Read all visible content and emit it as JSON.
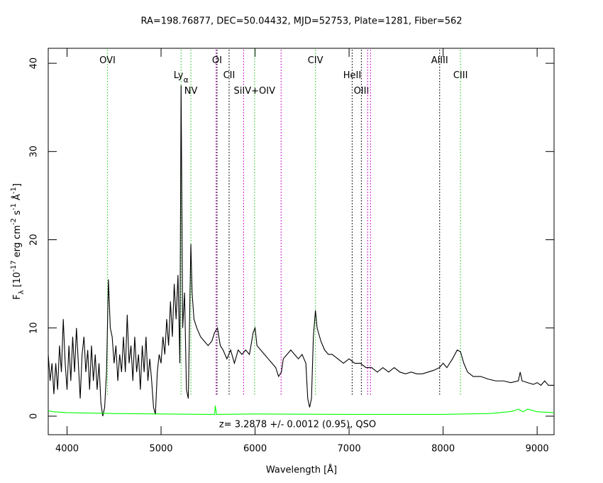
{
  "chart_data": {
    "type": "line",
    "title": "RA=198.76877, DEC=50.04432, MJD=52753, Plate=1281, Fiber=562",
    "x_label": "Wavelength [Å]",
    "y_label_parts": [
      "F",
      "λ",
      " [10",
      "-17",
      " erg cm",
      "-2",
      " s",
      "-1",
      " Å",
      "-1",
      "]"
    ],
    "annotation": "z= 3.2878 +/- 0.0012 (0.95), QSO",
    "xlim": [
      3800,
      9180
    ],
    "ylim": [
      -2.1,
      41.7
    ],
    "xticks": [
      4000,
      5000,
      6000,
      7000,
      8000,
      9000
    ],
    "yticks": [
      0,
      10,
      20,
      30,
      40
    ],
    "series": [
      {
        "name": "flux",
        "color": "#000000",
        "x": [
          3800,
          3820,
          3840,
          3860,
          3880,
          3900,
          3920,
          3940,
          3960,
          3980,
          4000,
          4020,
          4040,
          4060,
          4080,
          4100,
          4120,
          4140,
          4160,
          4180,
          4200,
          4220,
          4240,
          4260,
          4280,
          4300,
          4320,
          4340,
          4360,
          4380,
          4400,
          4420,
          4440,
          4460,
          4480,
          4500,
          4520,
          4540,
          4560,
          4580,
          4600,
          4620,
          4640,
          4660,
          4680,
          4700,
          4720,
          4740,
          4760,
          4780,
          4800,
          4820,
          4840,
          4860,
          4880,
          4900,
          4920,
          4940,
          4960,
          4980,
          5000,
          5020,
          5040,
          5060,
          5080,
          5100,
          5120,
          5140,
          5160,
          5180,
          5200,
          5213,
          5230,
          5250,
          5270,
          5290,
          5305,
          5317,
          5330,
          5350,
          5380,
          5420,
          5460,
          5500,
          5540,
          5570,
          5600,
          5630,
          5660,
          5700,
          5740,
          5780,
          5820,
          5860,
          5900,
          5940,
          5980,
          6000,
          6020,
          6060,
          6100,
          6140,
          6180,
          6220,
          6250,
          6280,
          6300,
          6340,
          6380,
          6420,
          6460,
          6500,
          6540,
          6560,
          6580,
          6600,
          6620,
          6642,
          6660,
          6700,
          6740,
          6780,
          6820,
          6880,
          6940,
          7000,
          7060,
          7120,
          7180,
          7240,
          7300,
          7360,
          7420,
          7480,
          7540,
          7600,
          7660,
          7720,
          7780,
          7840,
          7900,
          7960,
          8000,
          8040,
          8100,
          8150,
          8185,
          8220,
          8260,
          8320,
          8400,
          8480,
          8560,
          8640,
          8720,
          8800,
          8820,
          8840,
          8900,
          8960,
          9000,
          9040,
          9080,
          9120,
          9180
        ],
        "values": [
          7,
          4,
          6,
          2.5,
          6,
          3,
          8,
          5,
          11,
          6,
          3,
          8,
          4,
          9,
          5,
          10,
          6,
          2,
          7,
          9,
          5,
          7.5,
          3,
          8,
          4,
          7,
          3,
          6,
          1.5,
          0,
          1,
          5,
          15.5,
          10,
          9,
          6,
          8,
          4,
          7,
          5,
          9,
          5,
          11.5,
          6,
          8,
          4,
          9,
          5,
          7,
          3,
          8,
          5,
          9,
          4,
          6.5,
          4,
          1,
          0.2,
          5,
          7,
          6,
          9,
          7,
          11,
          8,
          13,
          9,
          15,
          11,
          16,
          6,
          37.5,
          10,
          14,
          3,
          2,
          12,
          19.5,
          14,
          11,
          10,
          9,
          8.5,
          8,
          8.5,
          9.5,
          10,
          8,
          7.5,
          6.5,
          7.5,
          6,
          7.5,
          7,
          7.5,
          7,
          9.5,
          10,
          8,
          7.5,
          7,
          6.5,
          6,
          5.5,
          4.5,
          5,
          6.5,
          7,
          7.5,
          7,
          6.5,
          7,
          6,
          2,
          1,
          2,
          9,
          12,
          10,
          8.5,
          7.5,
          7,
          7,
          6.5,
          6,
          6.5,
          6,
          6,
          5.5,
          5.5,
          5,
          5.5,
          5,
          5.5,
          5,
          4.8,
          5,
          4.8,
          4.8,
          5,
          5.2,
          5.5,
          6,
          5.5,
          6.5,
          7.5,
          7.3,
          6,
          5,
          4.5,
          4.5,
          4.2,
          4,
          4,
          3.8,
          4,
          5,
          4,
          3.8,
          3.6,
          3.8,
          3.5,
          4,
          3.5,
          3.5
        ]
      },
      {
        "name": "error",
        "color": "#00ff00",
        "x": [
          3800,
          3850,
          4000,
          4500,
          5000,
          5500,
          5570,
          5577,
          5590,
          6000,
          7000,
          8000,
          8500,
          8700,
          8750,
          8800,
          8850,
          8900,
          9000,
          9180
        ],
        "values": [
          0.6,
          0.5,
          0.4,
          0.3,
          0.25,
          0.2,
          0.2,
          1.2,
          0.2,
          0.25,
          0.2,
          0.2,
          0.3,
          0.5,
          0.6,
          0.8,
          0.5,
          0.8,
          0.5,
          0.4
        ]
      }
    ],
    "lines": [
      {
        "wavelength": 4430,
        "color": "#33cc33",
        "label": "OVI"
      },
      {
        "wavelength": 5213,
        "color": "#33cc33",
        "label": "Ly",
        "sub": "α"
      },
      {
        "wavelength": 5317,
        "color": "#33cc33",
        "label": "NV"
      },
      {
        "wavelength": 5585,
        "color": "#cc00cc",
        "label": null
      },
      {
        "wavelength": 5595,
        "color": "#000000",
        "label": "OI"
      },
      {
        "wavelength": 5724,
        "color": "#000000",
        "label": "CII"
      },
      {
        "wavelength": 5878,
        "color": "#cc00cc",
        "label": null
      },
      {
        "wavelength": 5994,
        "color": "#33cc33",
        "label": "SiIV+OIV"
      },
      {
        "wavelength": 6277,
        "color": "#cc00cc",
        "label": null
      },
      {
        "wavelength": 6642,
        "color": "#33cc33",
        "label": "CIV"
      },
      {
        "wavelength": 7033,
        "color": "#000000",
        "label": "HeII"
      },
      {
        "wavelength": 7131,
        "color": "#000000",
        "label": "OIII"
      },
      {
        "wavelength": 7197,
        "color": "#cc00cc",
        "label": null
      },
      {
        "wavelength": 7228,
        "color": "#cc00cc",
        "label": null
      },
      {
        "wavelength": 7963,
        "color": "#000000",
        "label": "AlIII"
      },
      {
        "wavelength": 8185,
        "color": "#33cc33",
        "label": "CIII"
      }
    ]
  }
}
